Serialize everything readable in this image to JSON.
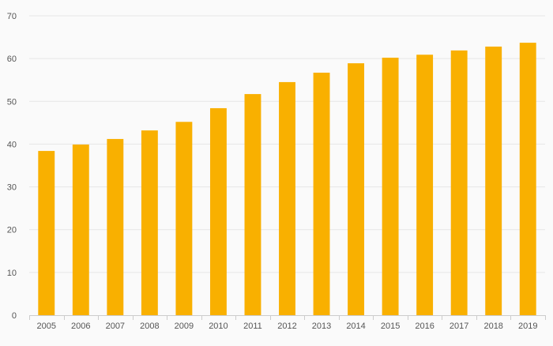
{
  "chart_data": {
    "type": "bar",
    "title": "",
    "xlabel": "",
    "ylabel": "",
    "categories": [
      "2005",
      "2006",
      "2007",
      "2008",
      "2009",
      "2010",
      "2011",
      "2012",
      "2013",
      "2014",
      "2015",
      "2016",
      "2017",
      "2018",
      "2019"
    ],
    "values": [
      38.4,
      39.9,
      41.2,
      43.2,
      45.2,
      48.4,
      51.7,
      54.5,
      56.7,
      58.9,
      60.2,
      60.9,
      61.9,
      62.8,
      63.7
    ],
    "ylim": [
      0,
      70
    ],
    "yticks": [
      0,
      10,
      20,
      30,
      40,
      50,
      60,
      70
    ],
    "grid": true,
    "legend": "none"
  },
  "colors": {
    "bar": "#f9b000",
    "grid": "#e6e6e6",
    "axis": "#cccccc",
    "background": "#fafafa",
    "tick_text": "#555555"
  }
}
